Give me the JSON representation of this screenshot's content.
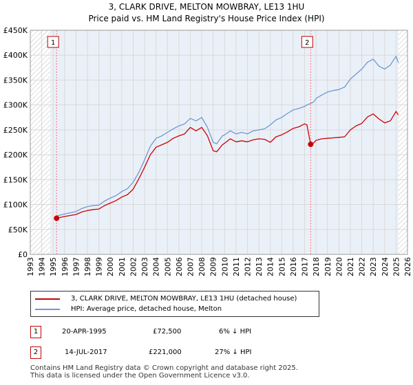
{
  "header": {
    "title": "3, CLARK DRIVE, MELTON MOWBRAY, LE13 1HU",
    "subtitle": "Price paid vs. HM Land Registry's House Price Index (HPI)"
  },
  "colors": {
    "price_paid": "#cc0000",
    "hpi": "#6f97d0",
    "grid": "#d9d9d9",
    "plot_bg": "#eaf0f8",
    "marker_line": "#ff7070"
  },
  "chart_data": {
    "type": "line",
    "title": "Price paid vs. HM Land Registry's House Price Index (HPI)",
    "xlabel": "",
    "ylabel": "",
    "xlim": [
      1993,
      2026
    ],
    "ylim": [
      0,
      450000
    ],
    "x_ticks": [
      "1993",
      "1994",
      "1995",
      "1996",
      "1997",
      "1998",
      "1999",
      "2000",
      "2001",
      "2002",
      "2003",
      "2004",
      "2005",
      "2006",
      "2007",
      "2008",
      "2009",
      "2010",
      "2011",
      "2012",
      "2013",
      "2014",
      "2015",
      "2016",
      "2017",
      "2018",
      "2019",
      "2020",
      "2021",
      "2022",
      "2023",
      "2024",
      "2025",
      "2026"
    ],
    "y_ticks": [
      {
        "value": 0,
        "label": "£0"
      },
      {
        "value": 50000,
        "label": "£50K"
      },
      {
        "value": 100000,
        "label": "£100K"
      },
      {
        "value": 150000,
        "label": "£150K"
      },
      {
        "value": 200000,
        "label": "£200K"
      },
      {
        "value": 250000,
        "label": "£250K"
      },
      {
        "value": 300000,
        "label": "£300K"
      },
      {
        "value": 350000,
        "label": "£350K"
      },
      {
        "value": 400000,
        "label": "£400K"
      },
      {
        "value": 450000,
        "label": "£450K"
      }
    ],
    "series": [
      {
        "name": "3, CLARK DRIVE, MELTON MOWBRAY, LE13 1HU (detached house)",
        "color": "#cc0000",
        "x": [
          1995.3,
          1996,
          1997,
          1997.5,
          1998,
          1998.5,
          1999,
          1999.5,
          2000,
          2000.5,
          2001,
          2001.5,
          2002,
          2002.5,
          2003,
          2003.5,
          2004,
          2004.5,
          2005,
          2005.5,
          2006,
          2006.5,
          2007,
          2007.5,
          2008,
          2008.5,
          2009,
          2009.3,
          2009.8,
          2010,
          2010.5,
          2011,
          2011.5,
          2012,
          2012.5,
          2013,
          2013.5,
          2014,
          2014.5,
          2015,
          2015.5,
          2016,
          2016.5,
          2017,
          2017.2,
          2017.53,
          2017.8,
          2018,
          2018.5,
          2019,
          2019.5,
          2020,
          2020.5,
          2021,
          2021.5,
          2022,
          2022.5,
          2023,
          2023.5,
          2024,
          2024.5,
          2025,
          2025.2
        ],
        "y": [
          72500,
          76000,
          80000,
          85000,
          88000,
          90000,
          91000,
          98000,
          103000,
          108000,
          115000,
          120000,
          131000,
          152000,
          175000,
          200000,
          215000,
          220000,
          225000,
          233000,
          238000,
          242000,
          255000,
          248000,
          255000,
          238000,
          208000,
          206000,
          220000,
          223000,
          232000,
          226000,
          228000,
          226000,
          230000,
          232000,
          231000,
          225000,
          236000,
          240000,
          246000,
          253000,
          256000,
          262000,
          260000,
          221000,
          224000,
          229000,
          232000,
          233000,
          234000,
          235000,
          236000,
          250000,
          258000,
          263000,
          276000,
          282000,
          272000,
          264000,
          268000,
          287000,
          280000
        ]
      },
      {
        "name": "HPI: Average price, detached house, Melton",
        "color": "#6f97d0",
        "x": [
          1995.3,
          1996,
          1997,
          1997.5,
          1998,
          1998.5,
          1999,
          1999.5,
          2000,
          2000.5,
          2001,
          2001.5,
          2002,
          2002.5,
          2003,
          2003.5,
          2004,
          2004.5,
          2005,
          2005.5,
          2006,
          2006.5,
          2007,
          2007.5,
          2008,
          2008.5,
          2009,
          2009.3,
          2009.8,
          2010,
          2010.5,
          2011,
          2011.5,
          2012,
          2012.5,
          2013,
          2013.5,
          2014,
          2014.5,
          2015,
          2015.5,
          2016,
          2016.5,
          2017,
          2017.2,
          2017.53,
          2017.8,
          2018,
          2018.5,
          2019,
          2019.5,
          2020,
          2020.5,
          2021,
          2021.5,
          2022,
          2022.5,
          2023,
          2023.5,
          2024,
          2024.5,
          2025,
          2025.2
        ],
        "y": [
          77000,
          81000,
          86000,
          92000,
          96000,
          98000,
          99000,
          107000,
          113000,
          118000,
          126000,
          132000,
          145000,
          165000,
          190000,
          217000,
          233000,
          238000,
          245000,
          252000,
          258000,
          262000,
          273000,
          268000,
          275000,
          255000,
          225000,
          222000,
          238000,
          240000,
          248000,
          242000,
          245000,
          242000,
          248000,
          250000,
          252000,
          260000,
          270000,
          275000,
          283000,
          290000,
          293000,
          297000,
          300000,
          303000,
          306000,
          313000,
          320000,
          326000,
          329000,
          331000,
          336000,
          352000,
          362000,
          372000,
          386000,
          392000,
          378000,
          372000,
          380000,
          398000,
          385000
        ]
      }
    ],
    "sales": [
      {
        "label": "1",
        "x": 1995.3,
        "price": 72500
      },
      {
        "label": "2",
        "x": 2017.53,
        "price": 221000
      }
    ]
  },
  "legend": {
    "price_paid": "3, CLARK DRIVE, MELTON MOWBRAY, LE13 1HU (detached house)",
    "hpi": "HPI: Average price, detached house, Melton"
  },
  "transactions": [
    {
      "num": "1",
      "date": "20-APR-1995",
      "price": "£72,500",
      "hpi_diff": "6% ↓ HPI"
    },
    {
      "num": "2",
      "date": "14-JUL-2017",
      "price": "£221,000",
      "hpi_diff": "27% ↓ HPI"
    }
  ],
  "footer": {
    "line1": "Contains HM Land Registry data © Crown copyright and database right 2025.",
    "line2": "This data is licensed under the Open Government Licence v3.0."
  }
}
